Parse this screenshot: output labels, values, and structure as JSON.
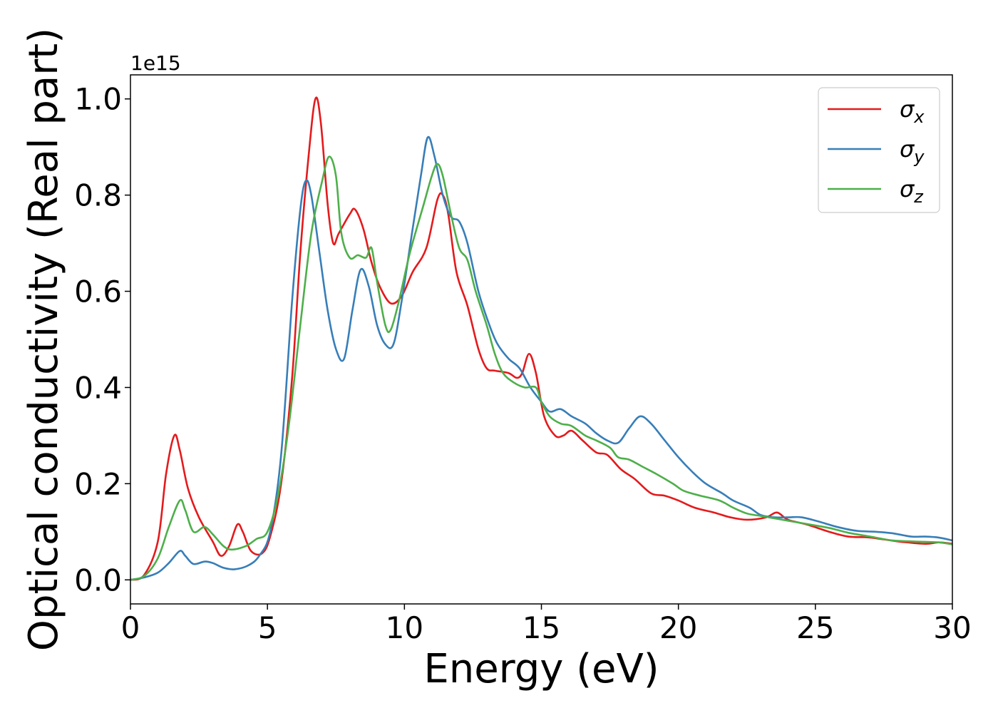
{
  "chart_data": {
    "type": "line",
    "title": "",
    "xlabel": "Energy (eV)",
    "ylabel": "Optical conductivity (Real part)",
    "y_offset_label": "1e15",
    "xlim": [
      0,
      30
    ],
    "ylim": [
      -0.05,
      1.05
    ],
    "xticks": [
      0,
      5,
      10,
      15,
      20,
      25,
      30
    ],
    "xtick_labels": [
      "0",
      "5",
      "10",
      "15",
      "20",
      "25",
      "30"
    ],
    "yticks": [
      0.0,
      0.2,
      0.4,
      0.6,
      0.8,
      1.0
    ],
    "ytick_labels": [
      "0.0",
      "0.2",
      "0.4",
      "0.6",
      "0.8",
      "1.0"
    ],
    "grid": false,
    "legend_position": "top-right",
    "series": [
      {
        "name": "σ",
        "subscript": "x",
        "color": "#e41a1c",
        "points": [
          [
            0,
            0
          ],
          [
            0.5,
            0.01
          ],
          [
            1.0,
            0.08
          ],
          [
            1.3,
            0.22
          ],
          [
            1.6,
            0.3
          ],
          [
            1.8,
            0.27
          ],
          [
            2.1,
            0.19
          ],
          [
            2.5,
            0.13
          ],
          [
            3.0,
            0.08
          ],
          [
            3.3,
            0.05
          ],
          [
            3.6,
            0.07
          ],
          [
            3.9,
            0.115
          ],
          [
            4.1,
            0.1
          ],
          [
            4.4,
            0.06
          ],
          [
            4.8,
            0.055
          ],
          [
            5.1,
            0.09
          ],
          [
            5.5,
            0.2
          ],
          [
            5.9,
            0.42
          ],
          [
            6.2,
            0.68
          ],
          [
            6.5,
            0.88
          ],
          [
            6.75,
            1.0
          ],
          [
            6.95,
            0.95
          ],
          [
            7.2,
            0.78
          ],
          [
            7.4,
            0.7
          ],
          [
            7.6,
            0.72
          ],
          [
            8.0,
            0.76
          ],
          [
            8.2,
            0.77
          ],
          [
            8.5,
            0.73
          ],
          [
            8.8,
            0.66
          ],
          [
            9.1,
            0.61
          ],
          [
            9.5,
            0.575
          ],
          [
            9.9,
            0.59
          ],
          [
            10.3,
            0.64
          ],
          [
            10.8,
            0.69
          ],
          [
            11.2,
            0.79
          ],
          [
            11.4,
            0.8
          ],
          [
            11.6,
            0.76
          ],
          [
            11.9,
            0.64
          ],
          [
            12.3,
            0.57
          ],
          [
            12.7,
            0.48
          ],
          [
            13.0,
            0.44
          ],
          [
            13.3,
            0.435
          ],
          [
            13.8,
            0.43
          ],
          [
            14.1,
            0.42
          ],
          [
            14.3,
            0.43
          ],
          [
            14.55,
            0.47
          ],
          [
            14.8,
            0.43
          ],
          [
            15.1,
            0.34
          ],
          [
            15.5,
            0.3
          ],
          [
            15.8,
            0.3
          ],
          [
            16.1,
            0.31
          ],
          [
            16.5,
            0.29
          ],
          [
            17.0,
            0.265
          ],
          [
            17.4,
            0.26
          ],
          [
            17.9,
            0.23
          ],
          [
            18.4,
            0.21
          ],
          [
            19.0,
            0.18
          ],
          [
            19.5,
            0.175
          ],
          [
            20.0,
            0.165
          ],
          [
            20.6,
            0.15
          ],
          [
            21.3,
            0.14
          ],
          [
            21.9,
            0.13
          ],
          [
            22.5,
            0.125
          ],
          [
            23.2,
            0.13
          ],
          [
            23.6,
            0.14
          ],
          [
            24.0,
            0.125
          ],
          [
            24.7,
            0.115
          ],
          [
            25.5,
            0.1
          ],
          [
            26.2,
            0.09
          ],
          [
            27.0,
            0.088
          ],
          [
            28.0,
            0.08
          ],
          [
            29.0,
            0.075
          ],
          [
            29.5,
            0.078
          ],
          [
            30.0,
            0.075
          ]
        ]
      },
      {
        "name": "σ",
        "subscript": "y",
        "color": "#377eb8",
        "points": [
          [
            0,
            0
          ],
          [
            0.5,
            0.005
          ],
          [
            1.0,
            0.015
          ],
          [
            1.4,
            0.035
          ],
          [
            1.8,
            0.06
          ],
          [
            2.0,
            0.05
          ],
          [
            2.3,
            0.033
          ],
          [
            2.7,
            0.038
          ],
          [
            3.0,
            0.035
          ],
          [
            3.4,
            0.025
          ],
          [
            3.8,
            0.022
          ],
          [
            4.3,
            0.03
          ],
          [
            4.7,
            0.05
          ],
          [
            5.1,
            0.1
          ],
          [
            5.5,
            0.26
          ],
          [
            5.9,
            0.58
          ],
          [
            6.2,
            0.77
          ],
          [
            6.4,
            0.83
          ],
          [
            6.6,
            0.8
          ],
          [
            6.9,
            0.68
          ],
          [
            7.2,
            0.56
          ],
          [
            7.5,
            0.48
          ],
          [
            7.8,
            0.46
          ],
          [
            8.1,
            0.56
          ],
          [
            8.4,
            0.645
          ],
          [
            8.7,
            0.61
          ],
          [
            9.0,
            0.53
          ],
          [
            9.3,
            0.49
          ],
          [
            9.6,
            0.49
          ],
          [
            9.9,
            0.58
          ],
          [
            10.3,
            0.73
          ],
          [
            10.6,
            0.84
          ],
          [
            10.85,
            0.92
          ],
          [
            11.1,
            0.88
          ],
          [
            11.4,
            0.8
          ],
          [
            11.7,
            0.755
          ],
          [
            12.0,
            0.745
          ],
          [
            12.3,
            0.7
          ],
          [
            12.7,
            0.6
          ],
          [
            13.1,
            0.53
          ],
          [
            13.4,
            0.49
          ],
          [
            13.8,
            0.46
          ],
          [
            14.2,
            0.44
          ],
          [
            14.6,
            0.4
          ],
          [
            15.0,
            0.37
          ],
          [
            15.3,
            0.35
          ],
          [
            15.7,
            0.355
          ],
          [
            16.1,
            0.34
          ],
          [
            16.6,
            0.325
          ],
          [
            17.0,
            0.305
          ],
          [
            17.4,
            0.29
          ],
          [
            17.8,
            0.285
          ],
          [
            18.2,
            0.315
          ],
          [
            18.6,
            0.34
          ],
          [
            19.0,
            0.325
          ],
          [
            19.5,
            0.29
          ],
          [
            20.0,
            0.255
          ],
          [
            20.5,
            0.225
          ],
          [
            21.0,
            0.2
          ],
          [
            21.6,
            0.18
          ],
          [
            22.0,
            0.165
          ],
          [
            22.6,
            0.15
          ],
          [
            23.0,
            0.135
          ],
          [
            23.5,
            0.13
          ],
          [
            24.0,
            0.13
          ],
          [
            24.5,
            0.13
          ],
          [
            25.2,
            0.12
          ],
          [
            25.8,
            0.11
          ],
          [
            26.5,
            0.102
          ],
          [
            27.2,
            0.1
          ],
          [
            27.8,
            0.097
          ],
          [
            28.5,
            0.09
          ],
          [
            29.0,
            0.09
          ],
          [
            29.5,
            0.088
          ],
          [
            30.0,
            0.082
          ]
        ]
      },
      {
        "name": "σ",
        "subscript": "z",
        "color": "#4daf4a",
        "points": [
          [
            0,
            0
          ],
          [
            0.5,
            0.008
          ],
          [
            1.0,
            0.045
          ],
          [
            1.4,
            0.11
          ],
          [
            1.8,
            0.165
          ],
          [
            2.0,
            0.145
          ],
          [
            2.3,
            0.1
          ],
          [
            2.7,
            0.11
          ],
          [
            3.0,
            0.095
          ],
          [
            3.4,
            0.07
          ],
          [
            3.7,
            0.063
          ],
          [
            4.2,
            0.07
          ],
          [
            4.6,
            0.085
          ],
          [
            5.0,
            0.1
          ],
          [
            5.4,
            0.18
          ],
          [
            5.8,
            0.33
          ],
          [
            6.2,
            0.53
          ],
          [
            6.6,
            0.72
          ],
          [
            7.0,
            0.83
          ],
          [
            7.25,
            0.88
          ],
          [
            7.5,
            0.84
          ],
          [
            7.7,
            0.72
          ],
          [
            8.0,
            0.67
          ],
          [
            8.3,
            0.675
          ],
          [
            8.6,
            0.67
          ],
          [
            8.8,
            0.69
          ],
          [
            9.0,
            0.62
          ],
          [
            9.3,
            0.53
          ],
          [
            9.5,
            0.52
          ],
          [
            9.8,
            0.58
          ],
          [
            10.2,
            0.68
          ],
          [
            10.7,
            0.78
          ],
          [
            11.0,
            0.84
          ],
          [
            11.2,
            0.865
          ],
          [
            11.4,
            0.84
          ],
          [
            11.7,
            0.76
          ],
          [
            12.0,
            0.69
          ],
          [
            12.3,
            0.665
          ],
          [
            12.6,
            0.6
          ],
          [
            13.0,
            0.53
          ],
          [
            13.3,
            0.47
          ],
          [
            13.6,
            0.43
          ],
          [
            14.0,
            0.41
          ],
          [
            14.4,
            0.4
          ],
          [
            14.8,
            0.4
          ],
          [
            15.0,
            0.37
          ],
          [
            15.3,
            0.34
          ],
          [
            15.7,
            0.325
          ],
          [
            16.1,
            0.32
          ],
          [
            16.6,
            0.3
          ],
          [
            17.0,
            0.29
          ],
          [
            17.5,
            0.275
          ],
          [
            17.8,
            0.255
          ],
          [
            18.2,
            0.25
          ],
          [
            18.7,
            0.235
          ],
          [
            19.2,
            0.22
          ],
          [
            19.8,
            0.2
          ],
          [
            20.2,
            0.185
          ],
          [
            20.8,
            0.175
          ],
          [
            21.5,
            0.165
          ],
          [
            22.0,
            0.15
          ],
          [
            22.5,
            0.138
          ],
          [
            23.0,
            0.133
          ],
          [
            23.5,
            0.128
          ],
          [
            24.0,
            0.123
          ],
          [
            24.8,
            0.115
          ],
          [
            25.5,
            0.108
          ],
          [
            26.2,
            0.098
          ],
          [
            27.0,
            0.09
          ],
          [
            27.8,
            0.082
          ],
          [
            28.5,
            0.08
          ],
          [
            29.0,
            0.079
          ],
          [
            29.5,
            0.078
          ],
          [
            30.0,
            0.074
          ]
        ]
      }
    ]
  }
}
